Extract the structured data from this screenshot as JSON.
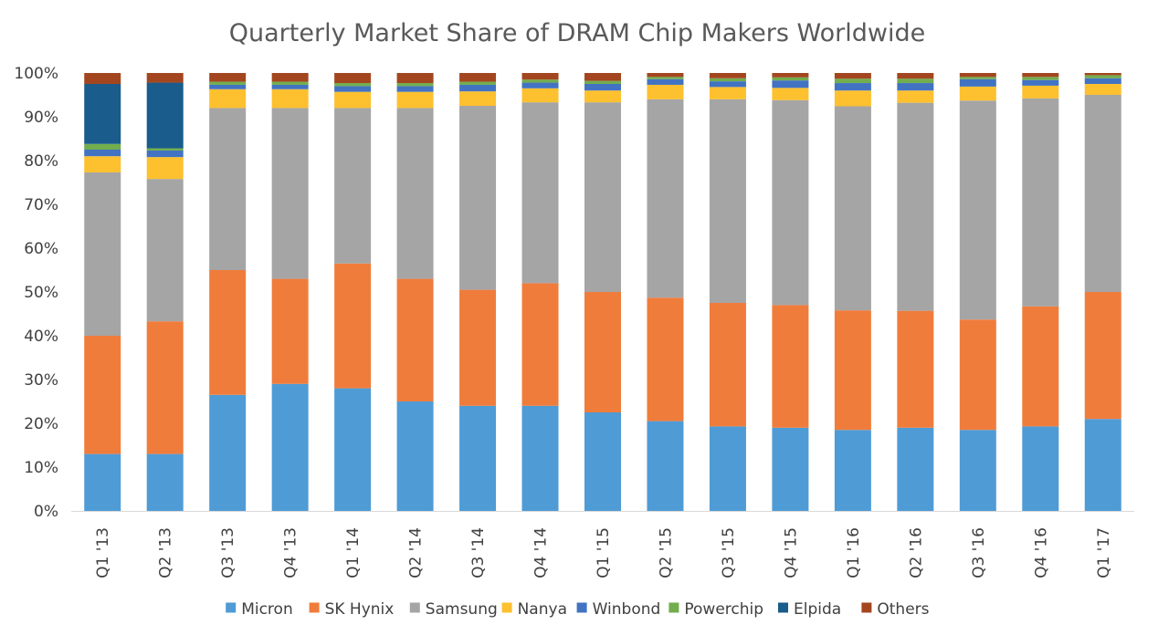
{
  "chart_data": {
    "type": "bar",
    "stacked": true,
    "title": "Quarterly Market Share of DRAM Chip Makers Worldwide",
    "xlabel": "",
    "ylabel": "",
    "ylim": [
      0,
      100
    ],
    "y_tick_labels": [
      "0%",
      "10%",
      "20%",
      "30%",
      "40%",
      "50%",
      "60%",
      "70%",
      "80%",
      "90%",
      "100%"
    ],
    "y_ticks": [
      0,
      10,
      20,
      30,
      40,
      50,
      60,
      70,
      80,
      90,
      100
    ],
    "categories": [
      "Q1 '13",
      "Q2 '13",
      "Q3 '13",
      "Q4 '13",
      "Q1 '14",
      "Q2 '14",
      "Q3 '14",
      "Q4 '14",
      "Q1 '15",
      "Q2 '15",
      "Q3 '15",
      "Q4 '15",
      "Q1 '16",
      "Q2 '16",
      "Q3 '16",
      "Q4 '16",
      "Q1 '17"
    ],
    "legend_position": "bottom",
    "grid": false,
    "series": [
      {
        "name": "Micron",
        "color": "#4f9bd5",
        "values": [
          13,
          13,
          26.5,
          29,
          28,
          25,
          24,
          24,
          22.5,
          20.5,
          19.3,
          19,
          18.5,
          19,
          18.5,
          19.3,
          21
        ]
      },
      {
        "name": "SK Hynix",
        "color": "#f07c3c",
        "values": [
          27,
          30.3,
          28.5,
          24,
          28.5,
          28,
          26.5,
          28,
          27.5,
          28.2,
          28.2,
          28,
          27.3,
          26.7,
          25.2,
          27.4,
          29
        ]
      },
      {
        "name": "Samsung",
        "color": "#a5a5a5",
        "values": [
          37.3,
          32.5,
          37,
          39,
          35.5,
          39,
          42,
          41.3,
          43.3,
          45.3,
          46.5,
          46.8,
          46.6,
          47.5,
          50,
          47.5,
          45
        ]
      },
      {
        "name": "Nanya",
        "color": "#fdc02f",
        "values": [
          3.7,
          5,
          4.3,
          4.3,
          3.7,
          3.7,
          3.3,
          3.2,
          2.7,
          3.3,
          2.8,
          2.8,
          3.6,
          2.8,
          3.2,
          2.9,
          2.5
        ]
      },
      {
        "name": "Winbond",
        "color": "#4273c3",
        "values": [
          1.5,
          1.5,
          1,
          1,
          1.3,
          1.3,
          1.5,
          1.3,
          1.5,
          1.3,
          1.3,
          1.7,
          1.7,
          1.7,
          1.7,
          1.3,
          1.3
        ]
      },
      {
        "name": "Powerchip",
        "color": "#72ad4e",
        "values": [
          1.3,
          0.5,
          0.7,
          0.7,
          0.7,
          0.7,
          0.7,
          0.7,
          0.7,
          0.5,
          0.7,
          0.7,
          1,
          1,
          0.5,
          0.7,
          0.7
        ]
      },
      {
        "name": "Elpida",
        "color": "#1a5c8b",
        "values": [
          13.7,
          15,
          0,
          0,
          0,
          0,
          0,
          0,
          0,
          0,
          0,
          0,
          0,
          0,
          0,
          0,
          0
        ]
      },
      {
        "name": "Others",
        "color": "#a3461f",
        "values": [
          2.5,
          2.2,
          2,
          2,
          2.3,
          2.3,
          2,
          1.5,
          1.8,
          0.9,
          1.2,
          1,
          1.3,
          1.3,
          0.9,
          0.9,
          0.5
        ]
      }
    ]
  }
}
